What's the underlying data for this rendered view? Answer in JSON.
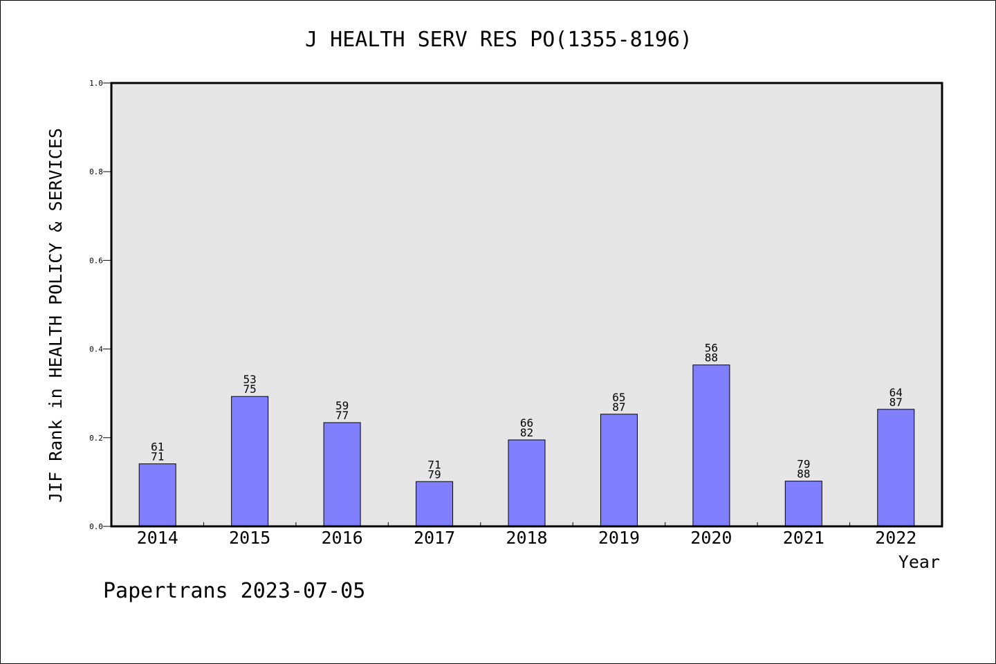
{
  "chart_data": {
    "type": "bar",
    "title": "J HEALTH SERV RES PO(1355-8196)",
    "xlabel": "Year",
    "ylabel": "JIF Rank in HEALTH POLICY & SERVICES",
    "ylim": [
      0,
      1.0
    ],
    "yticks": [
      "0.0",
      "0.2",
      "0.4",
      "0.6",
      "0.8",
      "1.0"
    ],
    "categories": [
      "2014",
      "2015",
      "2016",
      "2017",
      "2018",
      "2019",
      "2020",
      "2021",
      "2022"
    ],
    "values": [
      0.141,
      0.293,
      0.234,
      0.101,
      0.195,
      0.253,
      0.364,
      0.102,
      0.264
    ],
    "ranks": [
      "61",
      "53",
      "59",
      "71",
      "66",
      "65",
      "56",
      "79",
      "64"
    ],
    "totals": [
      "71",
      "75",
      "77",
      "79",
      "82",
      "87",
      "88",
      "88",
      "87"
    ],
    "grid": false,
    "legend": "none",
    "colors": {
      "bar": "#8080ff",
      "plot_bg": "#e6e6e6",
      "axis": "#000000"
    }
  },
  "footer": {
    "watermark": "Papertrans 2023-07-05"
  }
}
